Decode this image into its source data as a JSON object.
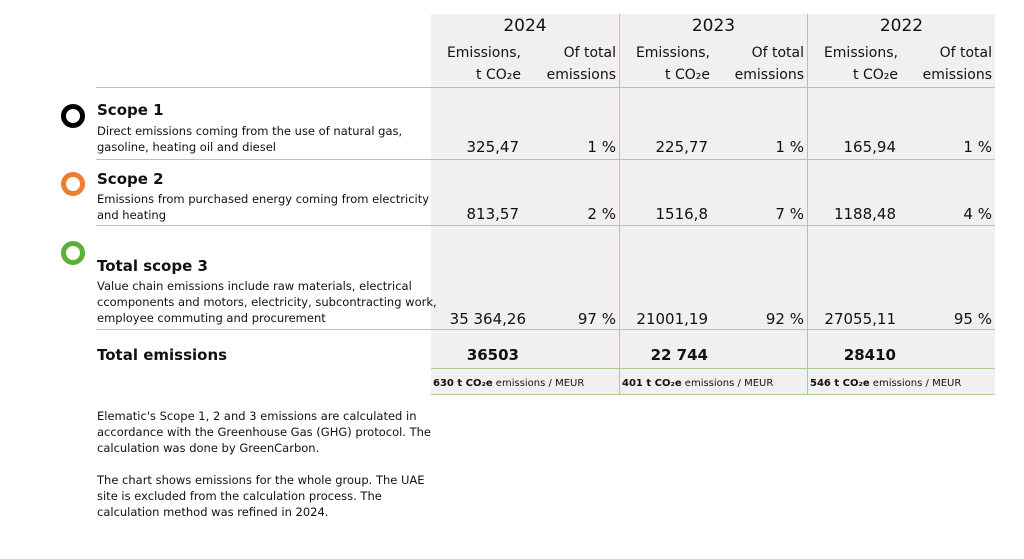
{
  "years": [
    "2024",
    "2023",
    "2022"
  ],
  "col_headers": {
    "emissions": [
      "Emissions,",
      "t CO₂e"
    ],
    "share": [
      "Of total",
      "emissions"
    ]
  },
  "rows": [
    {
      "icon": "ring-black-icon",
      "title": "Scope 1",
      "desc": "Direct emissions coming from the use of natural gas, gasoline, heating oil and diesel",
      "values": [
        {
          "em": "325,47",
          "pct": "1 %"
        },
        {
          "em": "225,77",
          "pct": "1 %"
        },
        {
          "em": "165,94",
          "pct": "1 %"
        }
      ]
    },
    {
      "icon": "ring-orange-icon",
      "title": "Scope 2",
      "desc": "Emissions  from purchased energy coming from electricity and heating",
      "values": [
        {
          "em": "813,57",
          "pct": "2 %"
        },
        {
          "em": "1516,8",
          "pct": "7 %"
        },
        {
          "em": "1188,48",
          "pct": "4 %"
        }
      ]
    },
    {
      "icon": "ring-green-icon",
      "title": "Total scope 3",
      "desc": "Value chain emissions include raw materials, electrical ccomponents and motors, electricity, subcontracting work, employee commuting and procurement",
      "values": [
        {
          "em": "35 364,26",
          "pct": "97 %"
        },
        {
          "em": "21001,19",
          "pct": "92 %"
        },
        {
          "em": "27055,11",
          "pct": "95 %"
        }
      ]
    }
  ],
  "total": {
    "label": "Total emissions",
    "values": [
      "36503",
      "22 744",
      "28410"
    ]
  },
  "intensity": [
    {
      "value": "630 t CO₂e",
      "suffix": " emissions / MEUR"
    },
    {
      "value": "401 t CO₂e",
      "suffix": " emissions / MEUR"
    },
    {
      "value": "546 t CO₂e",
      "suffix": " emissions / MEUR"
    }
  ],
  "notes": [
    "Elematic's Scope 1, 2 and 3 emissions are calculated in accordance with the Greenhouse Gas (GHG) protocol. The calculation was done by GreenCarbon.",
    "The chart shows emissions for the whole group. The UAE site is excluded from the calculation process. The calculation method was refined in 2024."
  ],
  "colors": {
    "scope1": "#000000",
    "scope2": "#ed7d31",
    "scope3": "#5bb135",
    "grid": "#a9d08e",
    "shade": "#f0f0f0"
  }
}
